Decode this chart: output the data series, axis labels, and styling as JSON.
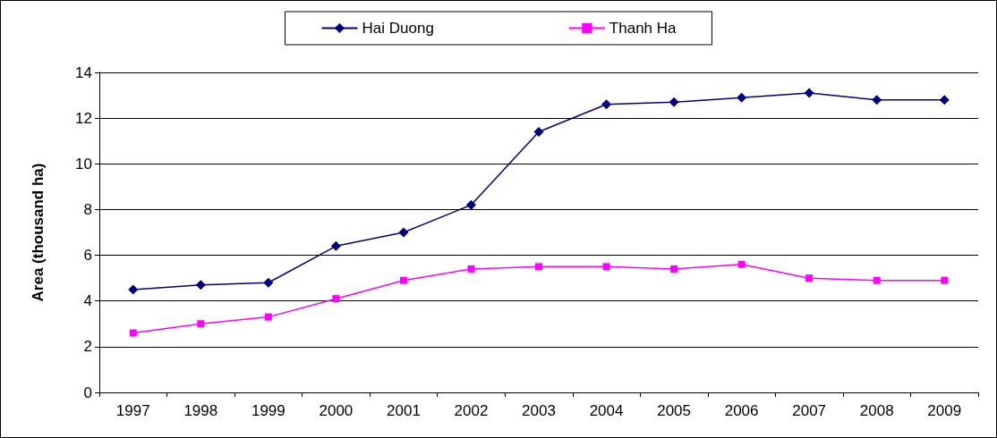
{
  "chart_data": {
    "type": "line",
    "ylabel": "Area (thousand ha)",
    "categories": [
      "1997",
      "1998",
      "1999",
      "2000",
      "2001",
      "2002",
      "2003",
      "2004",
      "2005",
      "2006",
      "2007",
      "2008",
      "2009"
    ],
    "series": [
      {
        "name": "Hai Duong",
        "color": "#000080",
        "marker": "diamond",
        "values": [
          4.5,
          4.7,
          4.8,
          6.4,
          7.0,
          8.2,
          11.4,
          12.6,
          12.7,
          12.9,
          13.1,
          12.8,
          12.8
        ]
      },
      {
        "name": "Thanh Ha",
        "color": "#ff00ff",
        "marker": "square",
        "values": [
          2.6,
          3.0,
          3.3,
          4.1,
          4.9,
          5.4,
          5.5,
          5.5,
          5.4,
          5.6,
          5.0,
          4.9,
          4.9
        ]
      }
    ],
    "ylim": [
      0,
      14
    ],
    "yticks": [
      0,
      2,
      4,
      6,
      8,
      10,
      12,
      14
    ],
    "grid": "y",
    "legend": "top",
    "line_style": "solid"
  }
}
